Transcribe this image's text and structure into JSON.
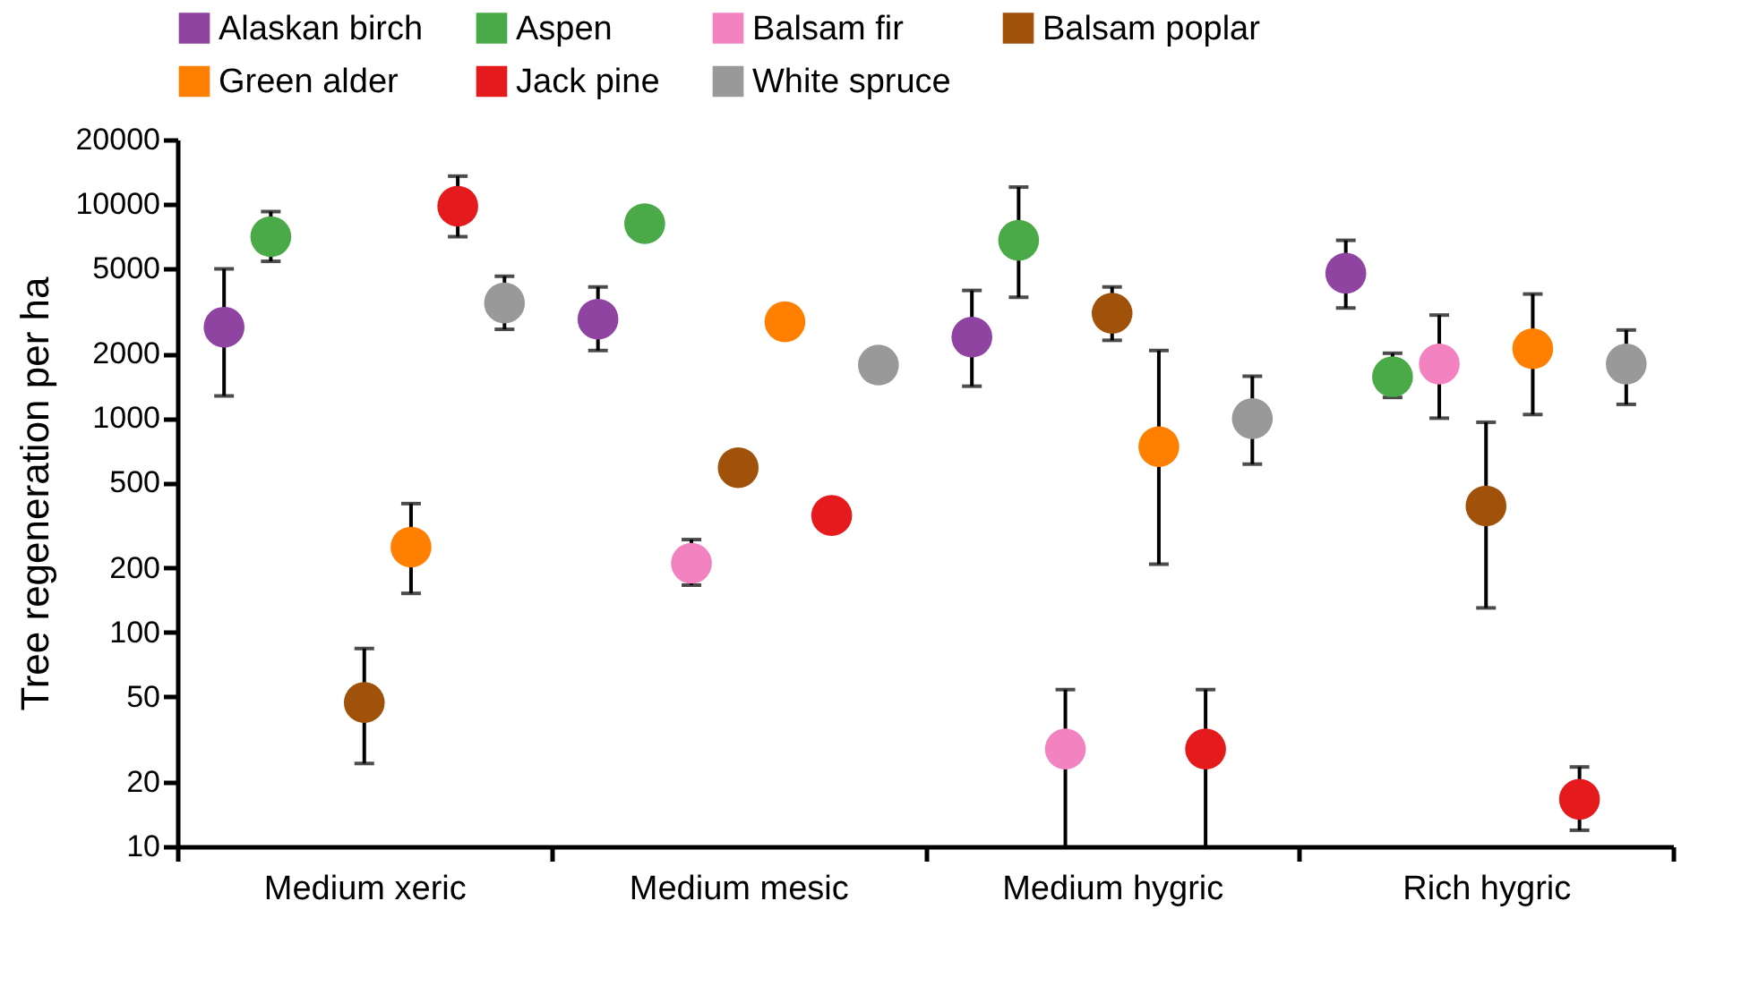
{
  "chart_data": {
    "type": "scatter",
    "ylabel": "Tree regeneration per ha",
    "categories": [
      "Medium xeric",
      "Medium mesic",
      "Medium hygric",
      "Rich hygric"
    ],
    "series": [
      {
        "name": "Alaskan birch",
        "color": "#8e44a0",
        "values": [
          2660,
          2900,
          2390,
          4750
        ],
        "errors": [
          [
            1270,
            4980
          ],
          [
            2070,
            4100
          ],
          [
            1410,
            3950
          ],
          [
            3270,
            6770
          ]
        ]
      },
      {
        "name": "Aspen",
        "color": "#4aaa48",
        "values": [
          7040,
          8100,
          6770,
          1560
        ],
        "errors": [
          [
            5400,
            9220
          ],
          null,
          [
            3670,
            12000
          ],
          [
            1250,
            2010
          ]
        ]
      },
      {
        "name": "Balsam fir",
        "color": "#f283c0",
        "values": [
          null,
          210,
          28.5,
          1790
        ],
        "errors": [
          null,
          [
            166,
            271
          ],
          [
            10,
            54
          ],
          [
            1000,
            3030
          ]
        ]
      },
      {
        "name": "Balsam poplar",
        "color": "#a0520a",
        "values": [
          47,
          587,
          3090,
          389
        ],
        "errors": [
          [
            24.4,
            84
          ],
          null,
          [
            2310,
            4100
          ],
          [
            130,
            957
          ]
        ]
      },
      {
        "name": "Green alder",
        "color": "#ff8000",
        "values": [
          250,
          2820,
          736,
          2110
        ],
        "errors": [
          [
            152,
            399
          ],
          null,
          [
            208,
            2070
          ],
          [
            1040,
            3800
          ]
        ]
      },
      {
        "name": "Jack pine",
        "color": "#e41a1c",
        "values": [
          9770,
          351,
          28.5,
          16.6
        ],
        "errors": [
          [
            7040,
            13500
          ],
          null,
          [
            10,
            54
          ],
          [
            11.9,
            23.5
          ]
        ]
      },
      {
        "name": "White spruce",
        "color": "#999999",
        "values": [
          3450,
          1770,
          995,
          1790
        ],
        "errors": [
          [
            2600,
            4600
          ],
          null,
          [
            610,
            1570
          ],
          [
            1160,
            2580
          ]
        ]
      }
    ],
    "log": true,
    "ylim": [
      10,
      20000
    ],
    "yticks": [
      10,
      20,
      50,
      100,
      200,
      500,
      1000,
      2000,
      5000,
      10000,
      20000
    ],
    "grid": false,
    "legend": "top"
  }
}
